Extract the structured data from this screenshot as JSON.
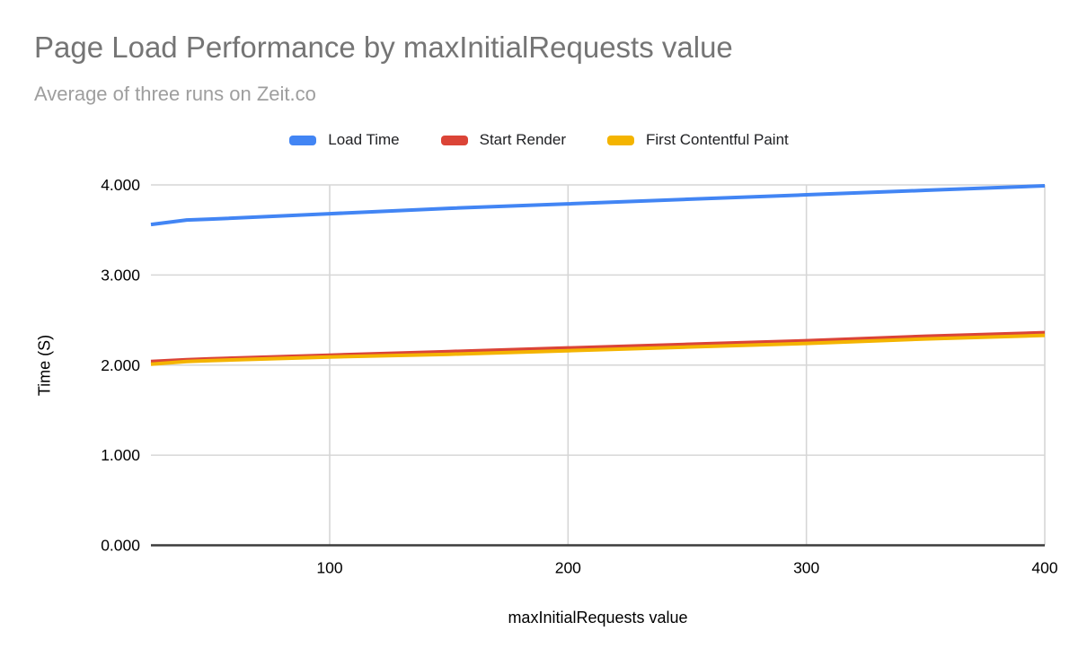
{
  "title": "Page Load Performance by maxInitialRequests value",
  "subtitle": "Average of three runs on Zeit.co",
  "colors": {
    "title_text": "#757575",
    "subtitle_text": "#9e9e9e",
    "gridline": "#d6d6d6",
    "axis_line": "#3c3c3c",
    "tick_text": "#000000"
  },
  "chart_data": {
    "type": "line",
    "title": "Page Load Performance by maxInitialRequests value",
    "subtitle": "Average of three runs on Zeit.co",
    "xlabel": "maxInitialRequests value",
    "ylabel": "Time (S)",
    "xlim": [
      25,
      400
    ],
    "ylim": [
      0,
      4
    ],
    "x_ticks": [
      100,
      200,
      300,
      400
    ],
    "y_ticks": [
      "0.000",
      "1.000",
      "2.000",
      "3.000",
      "4.000"
    ],
    "grid": true,
    "legend_position": "top",
    "x": [
      25,
      40,
      50,
      100,
      150,
      200,
      250,
      300,
      350,
      400
    ],
    "series": [
      {
        "name": "Load Time",
        "color": "#4285f4",
        "values": [
          3.56,
          3.61,
          3.62,
          3.68,
          3.74,
          3.79,
          3.84,
          3.89,
          3.94,
          3.99
        ]
      },
      {
        "name": "Start Render",
        "color": "#db4437",
        "values": [
          2.04,
          2.06,
          2.07,
          2.11,
          2.15,
          2.19,
          2.23,
          2.27,
          2.32,
          2.36
        ]
      },
      {
        "name": "First Contentful Paint",
        "color": "#f4b400",
        "values": [
          2.01,
          2.04,
          2.05,
          2.09,
          2.12,
          2.16,
          2.2,
          2.24,
          2.29,
          2.33
        ]
      }
    ]
  }
}
